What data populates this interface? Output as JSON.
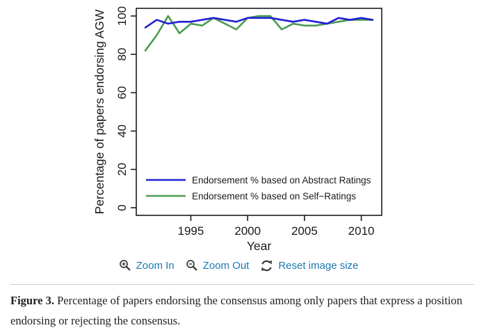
{
  "viewer": {
    "toolbar": {
      "zoom_in": "Zoom In",
      "zoom_out": "Zoom Out",
      "reset": "Reset image size"
    }
  },
  "caption": {
    "label": "Figure 3.",
    "text": "Percentage of papers endorsing the consensus among only papers that express a position endorsing or rejecting the consensus."
  },
  "colors": {
    "link": "#1b79b2",
    "icon": "#3a3a3a",
    "axis": "#1a1a1a",
    "rule": "#cccccc"
  },
  "chart_data": {
    "type": "line",
    "title": "",
    "xlabel": "Year",
    "ylabel": "Percentage of papers endorsing AGW",
    "x": [
      1991,
      1992,
      1993,
      1994,
      1995,
      1996,
      1997,
      1998,
      1999,
      2000,
      2001,
      2002,
      2003,
      2004,
      2005,
      2006,
      2007,
      2008,
      2009,
      2010,
      2011
    ],
    "series": [
      {
        "name": "Endorsement % based on Abstract Ratings",
        "color": "#1f1fd6",
        "values": [
          94,
          98,
          96,
          97,
          97,
          98,
          99,
          98,
          97,
          99,
          99,
          99,
          98,
          97,
          98,
          97,
          96,
          99,
          98,
          99,
          98
        ]
      },
      {
        "name": "Endorsement % based on Self−Ratings",
        "color": "#4b9b51",
        "values": [
          82,
          90,
          100,
          91,
          96,
          95,
          99,
          96,
          93,
          99,
          100,
          100,
          93,
          96,
          95,
          95,
          96,
          97,
          98,
          98,
          98
        ]
      }
    ],
    "xticks": [
      1995,
      2000,
      2005,
      2010
    ],
    "yticks": [
      0,
      20,
      40,
      60,
      80,
      100
    ],
    "xlim": [
      1991,
      2011
    ],
    "ylim": [
      0,
      100
    ],
    "grid": false,
    "legend_position": "bottom-left"
  }
}
